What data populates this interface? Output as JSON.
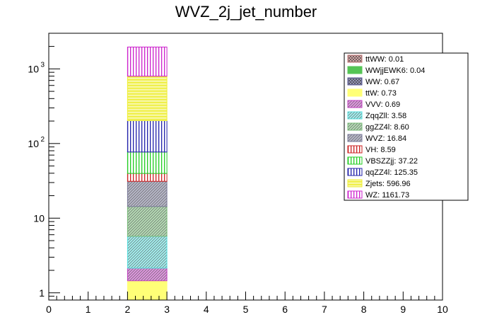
{
  "chart_data": {
    "type": "bar",
    "stacked": true,
    "title": "WVZ_2j_jet_number",
    "xlabel": "",
    "ylabel": "",
    "xlim": [
      0,
      10
    ],
    "ylim": [
      0.8,
      3000
    ],
    "yscale": "log",
    "x_ticks": [
      "0",
      "1",
      "2",
      "3",
      "4",
      "5",
      "6",
      "7",
      "8",
      "9",
      "10"
    ],
    "y_ticks": [
      {
        "value": 1,
        "label": "1",
        "exp": ""
      },
      {
        "value": 10,
        "label": "10",
        "exp": ""
      },
      {
        "value": 100,
        "label": "10",
        "exp": "2"
      },
      {
        "value": 1000,
        "label": "10",
        "exp": "3"
      }
    ],
    "bin": [
      2,
      3
    ],
    "series": [
      {
        "name": "ttWW",
        "legend": "ttWW: 0.01",
        "value": 0.01,
        "color": "#c87a7a",
        "pattern": "cross"
      },
      {
        "name": "WWjjEWK6",
        "legend": "WWjjEWK6: 0.04",
        "value": 0.04,
        "color": "#55c455",
        "pattern": "solidgreen"
      },
      {
        "name": "WW",
        "legend": "WW: 0.67",
        "value": 0.67,
        "color": "#5a5a9a",
        "pattern": "cross"
      },
      {
        "name": "ttW",
        "legend": "ttW: 0.73",
        "value": 0.73,
        "color": "#ffff77",
        "pattern": "solidyellow"
      },
      {
        "name": "VVV",
        "legend": "VVV: 0.69",
        "value": 0.69,
        "color": "#c040c0",
        "pattern": "diag"
      },
      {
        "name": "ZqqZll",
        "legend": "ZqqZll: 3.58",
        "value": 3.58,
        "color": "#55dede",
        "pattern": "diag"
      },
      {
        "name": "ggZZ4l",
        "legend": "ggZZ4l: 8.60",
        "value": 8.6,
        "color": "#77bb77",
        "pattern": "diag"
      },
      {
        "name": "WVZ",
        "legend": "WVZ: 16.84",
        "value": 16.84,
        "color": "#7a7a99",
        "pattern": "diag"
      },
      {
        "name": "VH",
        "legend": "VH: 8.59",
        "value": 8.59,
        "color": "#cc2222",
        "pattern": "vert"
      },
      {
        "name": "VBSZZjj",
        "legend": "VBSZZjj: 37.22",
        "value": 37.22,
        "color": "#22cc22",
        "pattern": "vert"
      },
      {
        "name": "qqZZ4l",
        "legend": "qqZZ4l: 125.35",
        "value": 125.35,
        "color": "#2222aa",
        "pattern": "vert"
      },
      {
        "name": "Zjets",
        "legend": "Zjets: 596.96",
        "value": 596.96,
        "color": "#eeee33",
        "pattern": "horiz"
      },
      {
        "name": "WZ",
        "legend": "WZ: 1161.73",
        "value": 1161.73,
        "color": "#cc22cc",
        "pattern": "vert"
      }
    ],
    "legend_position": "top-right",
    "grid": false
  }
}
